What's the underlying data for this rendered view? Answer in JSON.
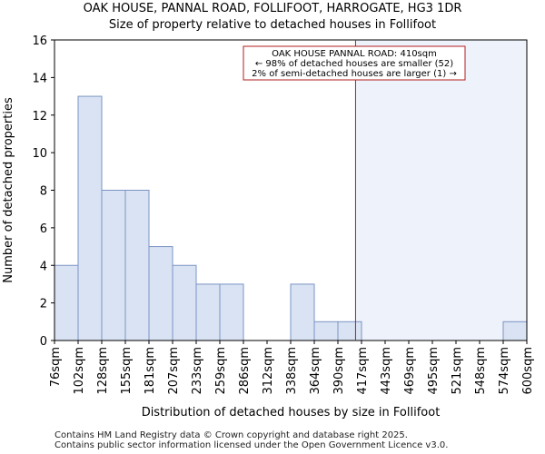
{
  "chart_data": {
    "type": "histogram",
    "title": "OAK HOUSE, PANNAL ROAD, FOLLIFOOT, HARROGATE, HG3 1DR",
    "subtitle": "Size of property relative to detached houses in Follifoot",
    "xlabel": "Distribution of detached houses by size in Follifoot",
    "ylabel": "Number of detached properties",
    "ylim": [
      0,
      16
    ],
    "yticks": [
      0,
      2,
      4,
      6,
      8,
      10,
      12,
      14,
      16
    ],
    "categories": [
      "76sqm",
      "102sqm",
      "128sqm",
      "155sqm",
      "181sqm",
      "207sqm",
      "233sqm",
      "259sqm",
      "286sqm",
      "312sqm",
      "338sqm",
      "364sqm",
      "390sqm",
      "417sqm",
      "443sqm",
      "469sqm",
      "495sqm",
      "521sqm",
      "548sqm",
      "574sqm",
      "600sqm"
    ],
    "values": [
      4,
      13,
      8,
      8,
      5,
      4,
      3,
      3,
      0,
      0,
      3,
      1,
      1,
      0,
      0,
      0,
      0,
      0,
      0,
      1
    ],
    "marker_value": 410,
    "bin_start": 76,
    "bin_width": 26.2,
    "annotation": {
      "line1": "OAK HOUSE PANNAL ROAD: 410sqm",
      "line2": "← 98% of detached houses are smaller (52)",
      "line3": "2% of semi-detached houses are larger (1) →"
    },
    "colors": {
      "bar_fill": "#dae3f3",
      "bar_edge": "#7a93c4",
      "marker": "#b11d1d",
      "shade": "#eef2fa"
    }
  },
  "footer": {
    "line1": "Contains HM Land Registry data © Crown copyright and database right 2025.",
    "line2": "Contains public sector information licensed under the Open Government Licence v3.0."
  }
}
